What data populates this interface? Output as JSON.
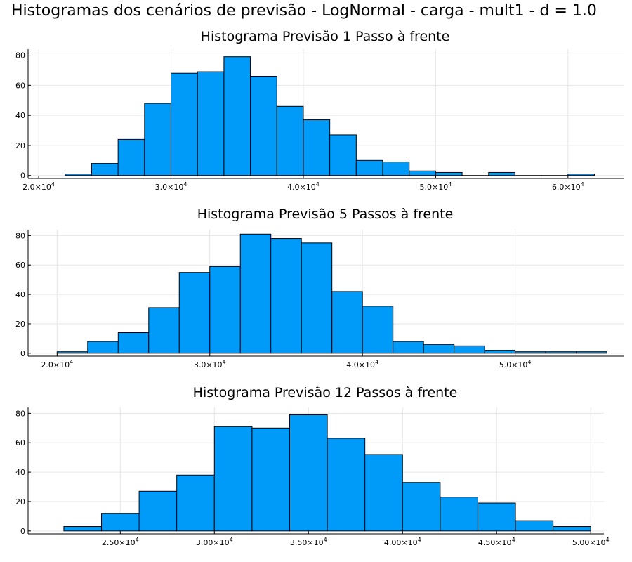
{
  "figure": {
    "title": "Histogramas dos cenários de previsão - LogNormal - carga - mult1 - d = 1.0"
  },
  "chart_data": [
    {
      "type": "bar",
      "title": "Histograma Previsão 1 Passo à frente",
      "xlabel": "",
      "ylabel": "",
      "bin_width": 2000,
      "bin_starts": [
        22000,
        24000,
        26000,
        28000,
        30000,
        32000,
        34000,
        36000,
        38000,
        40000,
        42000,
        44000,
        46000,
        48000,
        50000,
        52000,
        54000,
        56000,
        58000,
        60000
      ],
      "values": [
        1,
        8,
        24,
        48,
        68,
        69,
        79,
        66,
        46,
        37,
        27,
        10,
        9,
        3,
        2,
        0,
        2,
        0,
        0,
        1
      ],
      "xlim": [
        19200,
        64200
      ],
      "ylim": [
        -2,
        84
      ],
      "xticks": [
        20000,
        30000,
        40000,
        50000,
        60000
      ],
      "xtick_labels": [
        {
          "m": "2.0×10",
          "e": "4"
        },
        {
          "m": "3.0×10",
          "e": "4"
        },
        {
          "m": "4.0×10",
          "e": "4"
        },
        {
          "m": "5.0×10",
          "e": "4"
        },
        {
          "m": "6.0×10",
          "e": "4"
        }
      ],
      "yticks": [
        0,
        20,
        40,
        60,
        80
      ],
      "ytick_labels": [
        "0",
        "20",
        "40",
        "60",
        "80"
      ],
      "grid": true,
      "color": "#009af9"
    },
    {
      "type": "bar",
      "title": "Histograma Previsão 5 Passos à frente",
      "xlabel": "",
      "ylabel": "",
      "bin_width": 2000,
      "bin_starts": [
        20000,
        22000,
        24000,
        26000,
        28000,
        30000,
        32000,
        34000,
        36000,
        38000,
        40000,
        42000,
        44000,
        46000,
        48000,
        50000,
        52000,
        54000
      ],
      "values": [
        1,
        8,
        14,
        31,
        55,
        59,
        81,
        78,
        75,
        42,
        32,
        8,
        6,
        5,
        2,
        1,
        1,
        1
      ],
      "xlim": [
        18100,
        57100
      ],
      "ylim": [
        -2,
        84
      ],
      "xticks": [
        20000,
        30000,
        40000,
        50000
      ],
      "xtick_labels": [
        {
          "m": "2.0×10",
          "e": "4"
        },
        {
          "m": "3.0×10",
          "e": "4"
        },
        {
          "m": "4.0×10",
          "e": "4"
        },
        {
          "m": "5.0×10",
          "e": "4"
        }
      ],
      "yticks": [
        0,
        20,
        40,
        60,
        80
      ],
      "ytick_labels": [
        "0",
        "20",
        "40",
        "60",
        "80"
      ],
      "grid": true,
      "color": "#009af9"
    },
    {
      "type": "bar",
      "title": "Histograma Previsão 12 Passos à frente",
      "xlabel": "",
      "ylabel": "",
      "bin_width": 2000,
      "bin_starts": [
        22000,
        24000,
        26000,
        28000,
        30000,
        32000,
        34000,
        36000,
        38000,
        40000,
        42000,
        44000,
        46000,
        48000
      ],
      "values": [
        3,
        12,
        27,
        38,
        71,
        70,
        79,
        63,
        52,
        33,
        23,
        19,
        7,
        3
      ],
      "xlim": [
        20100,
        50700
      ],
      "ylim": [
        -2,
        84
      ],
      "xticks": [
        25000,
        30000,
        35000,
        40000,
        45000,
        50000
      ],
      "xtick_labels": [
        {
          "m": "2.50×10",
          "e": "4"
        },
        {
          "m": "3.00×10",
          "e": "4"
        },
        {
          "m": "3.50×10",
          "e": "4"
        },
        {
          "m": "4.00×10",
          "e": "4"
        },
        {
          "m": "4.50×10",
          "e": "4"
        },
        {
          "m": "5.00×10",
          "e": "4"
        }
      ],
      "yticks": [
        0,
        20,
        40,
        60,
        80
      ],
      "ytick_labels": [
        "0",
        "20",
        "40",
        "60",
        "80"
      ],
      "grid": true,
      "color": "#009af9"
    }
  ]
}
